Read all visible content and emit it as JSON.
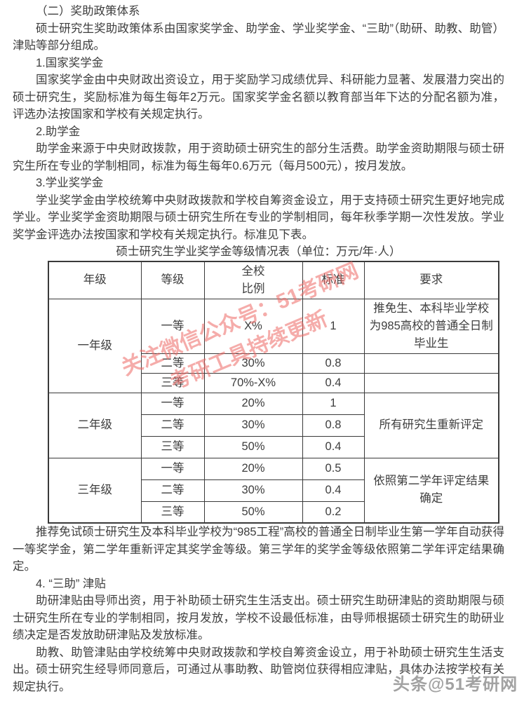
{
  "document": {
    "paragraphs": [
      "（二）奖助政策体系",
      "硕士研究生奖助政策体系由国家奖学金、助学金、学业奖学金、“三助”（助研、助教、助管）津贴等部分组成。",
      "1.国家奖学金",
      "国家奖学金由中央财政出资设立，用于奖励学习成绩优异、科研能力显著、发展潜力突出的硕士研究生，奖励标准为每生每年2万元。国家奖学金名额以教育部当年下达的分配名额为准，评选办法按国家和学校有关规定执行。",
      "2.助学金",
      "助学金来源于中央财政拨款，用于资助硕士研究生的部分生活费。助学金资助期限与硕士研究生所在专业的学制相同，标准为每生每年0.6万元（每月500元），按月发放。",
      "3.学业奖学金",
      "学业奖学金由学校统筹中央财政拨款和学校自筹资金设立，用于支持硕士研究生更好地完成学业。学业奖学金资助期限与硕士研究生所在专业的学制相同，每年秋季学期一次性发放。学业奖学金评选办法按国家和学校有关规定执行。标准见下表。",
      "推荐免试硕士研究生及本科毕业学校为“985工程”高校的普通全日制毕业生第一学年自动获得一等奖学金，第二学年重新评定其奖学金等级。第三学年的奖学金等级依照第二学年评定结果确定。",
      "4. “三助” 津贴",
      "助研津贴由导师出资，用于补助硕士研究生生活支出。硕士研究生助研津贴的资助期限与硕士研究生所在专业的学制相同，按月发放，学校不设最低标准，由导师根据硕士研究生的助研业绩决定是否发放助研津贴及发放标准。",
      "助教、助管津贴由学校统筹中央财政拨款和学校自筹资金设立，用于补助硕士研究生生活支出。硕士研究生经导师同意后，可通过从事助教、助管岗位获得相应津贴，具体办法按学校有关规定执行。"
    ]
  },
  "table": {
    "title": "硕士研究生学业奖学金等级情况表（单位：万元/年·人）",
    "headers": {
      "grade": "年级",
      "level": "等级",
      "ratio": "全校\n比例",
      "standard": "标准",
      "requirement": "要求"
    },
    "rows": [
      {
        "grade": "一年级",
        "level": "一等",
        "ratio": "X%",
        "standard": "1",
        "requirement": "推免生、本科毕业学校为985高校的普通全日制毕业生"
      },
      {
        "level": "二等",
        "ratio": "30%",
        "standard": "0.8",
        "requirement": ""
      },
      {
        "level": "三等",
        "ratio": "70%-X%",
        "standard": "0.4",
        "requirement": ""
      },
      {
        "grade": "二年级",
        "level": "一等",
        "ratio": "20%",
        "standard": "1",
        "requirement": "所有研究生重新评定"
      },
      {
        "level": "二等",
        "ratio": "30%",
        "standard": "0.8"
      },
      {
        "level": "三等",
        "ratio": "50%",
        "standard": "0.4"
      },
      {
        "grade": "三年级",
        "level": "一等",
        "ratio": "20%",
        "standard": "0.5",
        "requirement": "依照第二学年评定结果确定"
      },
      {
        "level": "二等",
        "ratio": "30%",
        "standard": "0.4"
      },
      {
        "level": "三等",
        "ratio": "50%",
        "standard": "0.2"
      }
    ]
  },
  "watermarks": {
    "diagonal_line1": "关注微信公众号：51考研网",
    "diagonal_line2": "考研工具持续更新",
    "diagonal_color": "#ee6a66",
    "corner_text": "头条@51考研网",
    "corner_color": "#a2a2a2"
  },
  "colors": {
    "body_text": "#3e3e3e",
    "table_border": "#3a3a3a",
    "background": "#ffffff"
  }
}
